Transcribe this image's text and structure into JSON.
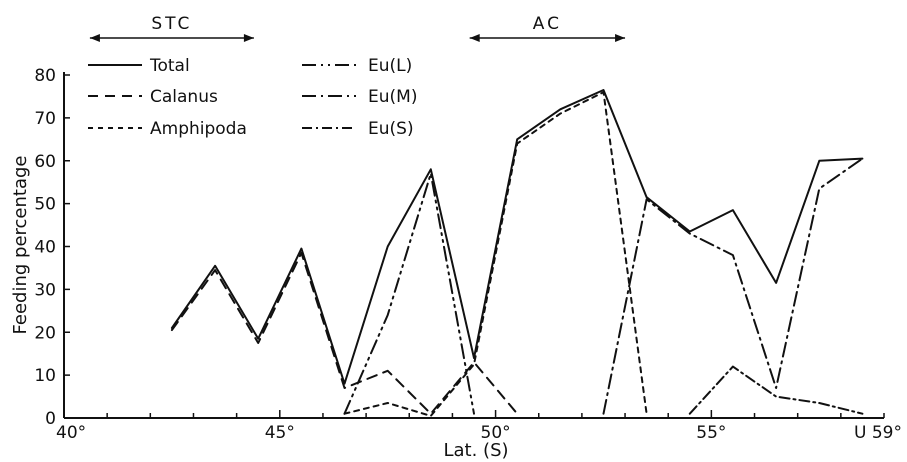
{
  "chart_data": {
    "type": "line",
    "xlabel": "Lat. (S)",
    "ylabel": "Feeding percentage",
    "xlim": [
      40,
      59
    ],
    "ylim": [
      0,
      80
    ],
    "x_tick_labels": [
      "40°",
      "45°",
      "50°",
      "55°",
      "U 59°"
    ],
    "y_ticks": [
      0,
      10,
      20,
      30,
      40,
      50,
      60,
      70,
      80
    ],
    "regions": [
      {
        "label": "STC",
        "from": 40.6,
        "to": 44.4
      },
      {
        "label": "AC",
        "from": 49.4,
        "to": 53.0
      }
    ],
    "series": [
      {
        "name": "Total",
        "dash": "",
        "points": [
          [
            42.5,
            21
          ],
          [
            43.5,
            35.5
          ],
          [
            44.5,
            18.5
          ],
          [
            45.5,
            39.5
          ],
          [
            46.5,
            8
          ],
          [
            47.5,
            40
          ],
          [
            48.5,
            58
          ],
          [
            49.5,
            14
          ],
          [
            50.5,
            65
          ],
          [
            51.5,
            72
          ],
          [
            52.5,
            76.5
          ],
          [
            53.5,
            51.5
          ],
          [
            54.5,
            43.5
          ],
          [
            55.5,
            48.5
          ],
          [
            56.5,
            31.5
          ],
          [
            57.5,
            60
          ],
          [
            58.5,
            60.5
          ]
        ]
      },
      {
        "name": "Calanus",
        "dash": "10,7",
        "points": [
          [
            42.5,
            20.5
          ],
          [
            43.5,
            34.5
          ],
          [
            44.5,
            17.5
          ],
          [
            45.5,
            38.5
          ],
          [
            46.5,
            7
          ],
          [
            47.5,
            11
          ],
          [
            48.5,
            1
          ],
          [
            49.5,
            13
          ],
          [
            50.5,
            1
          ]
        ]
      },
      {
        "name": "Amphipoda",
        "dash": "5,5",
        "points": [
          [
            46.5,
            1
          ],
          [
            47.5,
            3.5
          ],
          [
            48.5,
            0.5
          ],
          [
            49.5,
            12.5
          ],
          [
            50.5,
            64
          ],
          [
            51.5,
            71
          ],
          [
            52.5,
            76
          ],
          [
            53.5,
            1
          ]
        ]
      },
      {
        "name": "Eu(L)",
        "dash": "14,5,2,5,2,5",
        "points": [
          [
            46.5,
            1
          ],
          [
            47.5,
            24
          ],
          [
            48.5,
            57
          ],
          [
            49.5,
            1
          ]
        ]
      },
      {
        "name": "Eu(M)",
        "dash": "14,5,2,5",
        "points": [
          [
            52.5,
            1
          ],
          [
            53.5,
            51
          ],
          [
            54.5,
            43
          ],
          [
            55.5,
            38
          ],
          [
            56.5,
            7
          ],
          [
            57.5,
            53.5
          ],
          [
            58.5,
            60.5
          ]
        ]
      },
      {
        "name": "Eu(S)",
        "dash": "10,4,2,4",
        "points": [
          [
            54.5,
            1
          ],
          [
            55.5,
            12
          ],
          [
            56.5,
            5
          ],
          [
            57.5,
            3.5
          ],
          [
            58.5,
            1
          ]
        ]
      }
    ]
  }
}
